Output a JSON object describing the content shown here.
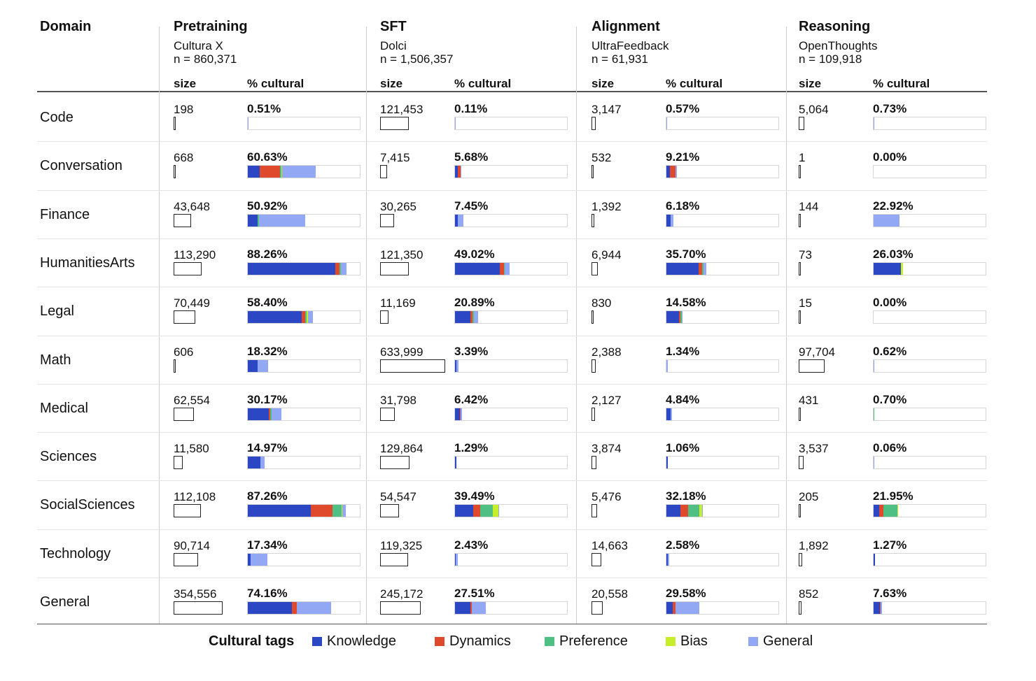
{
  "header": {
    "domain_label": "Domain",
    "size_label": "size",
    "pct_label": "% cultural"
  },
  "stages": [
    {
      "title": "Pretraining",
      "dataset": "Cultura X",
      "n": "n = 860,371"
    },
    {
      "title": "SFT",
      "dataset": "Dolci",
      "n": "n = 1,506,357"
    },
    {
      "title": "Alignment",
      "dataset": "UltraFeedback",
      "n": "n = 61,931"
    },
    {
      "title": "Reasoning",
      "dataset": "OpenThoughts",
      "n": "n = 109,918"
    }
  ],
  "legend": {
    "title": "Cultural tags",
    "items": [
      {
        "label": "Knowledge",
        "color": "#2b47c4"
      },
      {
        "label": "Dynamics",
        "color": "#e04a2c"
      },
      {
        "label": "Preference",
        "color": "#4fbf84"
      },
      {
        "label": "Bias",
        "color": "#c8ee2a"
      },
      {
        "label": "General",
        "color": "#92a8f5"
      }
    ]
  },
  "chart_data": {
    "type": "table",
    "columns": [
      "Domain",
      "Pretraining",
      "SFT",
      "Alignment",
      "Reasoning"
    ],
    "rows": [
      {
        "domain": "Code",
        "cells": [
          {
            "size": "198",
            "pct": "0.51%",
            "segments": [
              0,
              0,
              0,
              0,
              0.51
            ]
          },
          {
            "size": "121,453",
            "pct": "0.11%",
            "segments": [
              0,
              0,
              0,
              0,
              0.11
            ]
          },
          {
            "size": "3,147",
            "pct": "0.57%",
            "segments": [
              0,
              0,
              0,
              0,
              0.57
            ]
          },
          {
            "size": "5,064",
            "pct": "0.73%",
            "segments": [
              0,
              0,
              0,
              0,
              0.73
            ]
          }
        ]
      },
      {
        "domain": "Conversation",
        "cells": [
          {
            "size": "668",
            "pct": "60.63%",
            "segments": [
              10.5,
              18.5,
              1.0,
              0.5,
              30.13
            ]
          },
          {
            "size": "7,415",
            "pct": "5.68%",
            "segments": [
              2.5,
              2.5,
              0,
              0,
              0.68
            ]
          },
          {
            "size": "532",
            "pct": "9.21%",
            "segments": [
              3.0,
              5.0,
              0,
              0,
              1.21
            ]
          },
          {
            "size": "1",
            "pct": "0.00%",
            "segments": [
              0,
              0,
              0,
              0,
              0
            ]
          }
        ]
      },
      {
        "domain": "Finance",
        "cells": [
          {
            "size": "43,648",
            "pct": "50.92%",
            "segments": [
              9.0,
              0,
              1.0,
              0,
              40.92
            ]
          },
          {
            "size": "30,265",
            "pct": "7.45%",
            "segments": [
              2.5,
              0,
              0,
              0,
              4.95
            ]
          },
          {
            "size": "1,392",
            "pct": "6.18%",
            "segments": [
              3.5,
              0,
              0,
              0,
              2.68
            ]
          },
          {
            "size": "144",
            "pct": "22.92%",
            "segments": [
              0,
              0,
              0,
              0,
              22.92
            ]
          }
        ]
      },
      {
        "domain": "HumanitiesArts",
        "cells": [
          {
            "size": "113,290",
            "pct": "88.26%",
            "segments": [
              78.0,
              4.0,
              1.0,
              0,
              5.26
            ]
          },
          {
            "size": "121,350",
            "pct": "49.02%",
            "segments": [
              40.0,
              3.5,
              1.0,
              0,
              4.52
            ]
          },
          {
            "size": "6,944",
            "pct": "35.70%",
            "segments": [
              28.5,
              3.5,
              1.0,
              0,
              2.7
            ]
          },
          {
            "size": "73",
            "pct": "26.03%",
            "segments": [
              24.5,
              0,
              0,
              1.53,
              0
            ]
          }
        ]
      },
      {
        "domain": "Legal",
        "cells": [
          {
            "size": "70,449",
            "pct": "58.40%",
            "segments": [
              48.0,
              3.5,
              1.0,
              1.0,
              4.9
            ]
          },
          {
            "size": "11,169",
            "pct": "20.89%",
            "segments": [
              14.0,
              1.5,
              1.5,
              0,
              3.89
            ]
          },
          {
            "size": "830",
            "pct": "14.58%",
            "segments": [
              11.0,
              1.5,
              1.0,
              0,
              1.08
            ]
          },
          {
            "size": "15",
            "pct": "0.00%",
            "segments": [
              0,
              0,
              0,
              0,
              0
            ]
          }
        ]
      },
      {
        "domain": "Math",
        "cells": [
          {
            "size": "606",
            "pct": "18.32%",
            "segments": [
              8.5,
              0,
              0,
              0,
              9.82
            ]
          },
          {
            "size": "633,999",
            "pct": "3.39%",
            "segments": [
              1.5,
              0,
              0,
              0,
              1.89
            ]
          },
          {
            "size": "2,388",
            "pct": "1.34%",
            "segments": [
              0,
              0,
              0,
              0,
              1.34
            ]
          },
          {
            "size": "97,704",
            "pct": "0.62%",
            "segments": [
              0,
              0,
              0,
              0,
              0.62
            ]
          }
        ]
      },
      {
        "domain": "Medical",
        "cells": [
          {
            "size": "62,554",
            "pct": "30.17%",
            "segments": [
              19.0,
              1.0,
              1.0,
              0,
              9.17
            ]
          },
          {
            "size": "31,798",
            "pct": "6.42%",
            "segments": [
              4.5,
              0.5,
              0,
              0,
              1.42
            ]
          },
          {
            "size": "2,127",
            "pct": "4.84%",
            "segments": [
              3.5,
              0.5,
              0,
              0,
              0.84
            ]
          },
          {
            "size": "431",
            "pct": "0.70%",
            "segments": [
              0,
              0,
              0.7,
              0,
              0
            ]
          }
        ]
      },
      {
        "domain": "Sciences",
        "cells": [
          {
            "size": "11,580",
            "pct": "14.97%",
            "segments": [
              11.5,
              0,
              0,
              0,
              3.47
            ]
          },
          {
            "size": "129,864",
            "pct": "1.29%",
            "segments": [
              1.29,
              0,
              0,
              0,
              0
            ]
          },
          {
            "size": "3,874",
            "pct": "1.06%",
            "segments": [
              1.06,
              0,
              0,
              0,
              0
            ]
          },
          {
            "size": "3,537",
            "pct": "0.06%",
            "segments": [
              0,
              0,
              0,
              0,
              0.06
            ]
          }
        ]
      },
      {
        "domain": "SocialSciences",
        "cells": [
          {
            "size": "112,108",
            "pct": "87.26%",
            "segments": [
              56.0,
              19.5,
              8.0,
              1.0,
              2.76
            ]
          },
          {
            "size": "54,547",
            "pct": "39.49%",
            "segments": [
              16.5,
              6.0,
              11.0,
              5.0,
              0.99
            ]
          },
          {
            "size": "5,476",
            "pct": "32.18%",
            "segments": [
              12.5,
              7.0,
              10.0,
              2.5,
              0.18
            ]
          },
          {
            "size": "205",
            "pct": "21.95%",
            "segments": [
              5.0,
              3.5,
              12.5,
              0.95,
              0
            ]
          }
        ]
      },
      {
        "domain": "Technology",
        "cells": [
          {
            "size": "90,714",
            "pct": "17.34%",
            "segments": [
              2.5,
              0,
              0,
              0,
              14.84
            ]
          },
          {
            "size": "119,325",
            "pct": "2.43%",
            "segments": [
              0.5,
              0,
              0,
              0,
              1.93
            ]
          },
          {
            "size": "14,663",
            "pct": "2.58%",
            "segments": [
              1.0,
              0,
              0,
              0,
              1.58
            ]
          },
          {
            "size": "1,892",
            "pct": "1.27%",
            "segments": [
              1.27,
              0,
              0,
              0,
              0
            ]
          }
        ]
      },
      {
        "domain": "General",
        "cells": [
          {
            "size": "354,556",
            "pct": "74.16%",
            "segments": [
              39.5,
              4.5,
              0,
              0,
              30.16
            ]
          },
          {
            "size": "245,172",
            "pct": "27.51%",
            "segments": [
              13.5,
              1.5,
              0,
              0,
              12.51
            ]
          },
          {
            "size": "20,558",
            "pct": "29.58%",
            "segments": [
              5.5,
              2.5,
              0,
              0,
              21.58
            ]
          },
          {
            "size": "852",
            "pct": "7.63%",
            "segments": [
              5.5,
              1.0,
              0,
              0,
              1.13
            ]
          }
        ]
      }
    ]
  }
}
